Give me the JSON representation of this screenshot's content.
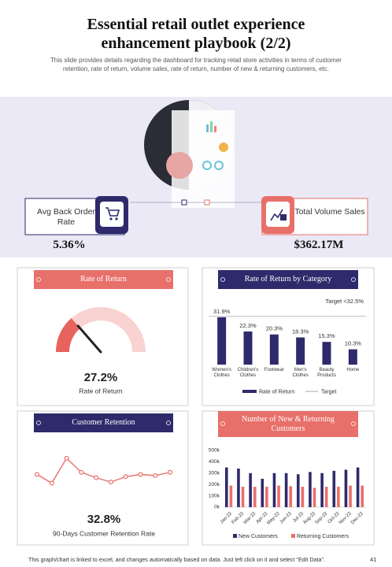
{
  "header": {
    "title": "Essential retail outlet experience enhancement playbook (2/2)",
    "subtitle": "This slide provides details regarding the dashboard for tracking retail store activities in terms of customer retention, rate of return, volume sales, rate of return, number of new & returning customers, etc."
  },
  "kpis": [
    {
      "label": "Avg Back Order Rate",
      "value": "5.36%"
    },
    {
      "label": "Total Volume Sales",
      "value": "$362.17M"
    }
  ],
  "chart_data": [
    {
      "type": "gauge",
      "title": "Rate of Return",
      "value": 27.2,
      "value_label": "27.2%",
      "label": "Rate of Return",
      "ylim": [
        0,
        100
      ],
      "color": "#e8635e",
      "track_color": "#f9d3d1"
    },
    {
      "type": "bar",
      "title": "Rate of Return by Category",
      "categories": [
        "Women's Clothes",
        "Children's Clothes",
        "Footwear",
        "Men's Clothes",
        "Beauty Products",
        "Home"
      ],
      "series": [
        {
          "name": "Rate of Return",
          "color": "#2e2a6b",
          "values": [
            31.9,
            22.3,
            20.3,
            18.3,
            15.3,
            10.3
          ],
          "value_labels": [
            "31.9%",
            "22.3%",
            "20.3%",
            "18.3%",
            "15.3%",
            "10.3%"
          ]
        }
      ],
      "target": {
        "name": "Target",
        "value": 32.5,
        "label": "Target <32.5%",
        "color": "#aaaaaa"
      },
      "ylim": [
        0,
        35
      ]
    },
    {
      "type": "line",
      "title": "Customer Retention",
      "values": [
        30,
        22,
        45,
        32,
        27,
        23,
        28,
        30,
        29,
        32
      ],
      "color": "#e8706a",
      "ylim": [
        10,
        50
      ],
      "summary_value": 32.8,
      "summary_label": "32.8%",
      "label": "90-Days Customer Retention Rate"
    },
    {
      "type": "grouped_bar",
      "title": "Number of New & Returning Customers",
      "categories": [
        "Jan-22",
        "Feb-22",
        "Mar-22",
        "Apr-22",
        "May-22",
        "Jun-22",
        "Jul-22",
        "Aug-22",
        "Sep-22",
        "Oct-22",
        "Nov-22",
        "Dec-22"
      ],
      "series": [
        {
          "name": "New Customers",
          "color": "#2e2a6b",
          "values": [
            350000,
            340000,
            300000,
            250000,
            300000,
            300000,
            290000,
            310000,
            300000,
            320000,
            330000,
            350000
          ]
        },
        {
          "name": "Returning Customers",
          "color": "#e8706a",
          "values": [
            190000,
            180000,
            180000,
            180000,
            190000,
            185000,
            180000,
            170000,
            180000,
            180000,
            190000,
            190000
          ]
        }
      ],
      "ylim": [
        0,
        500000
      ],
      "yticks": [
        {
          "value": 0,
          "label": "0k"
        },
        {
          "value": 100000,
          "label": "100k"
        },
        {
          "value": 200000,
          "label": "200k"
        },
        {
          "value": 300000,
          "label": "300k"
        },
        {
          "value": 400000,
          "label": "400k"
        },
        {
          "value": 500000,
          "label": "500k"
        }
      ],
      "grid": false
    }
  ],
  "footer": {
    "note": "This graph/chart is linked to excel, and changes automatically based on data. Just left click on it and select \"Edit Data\".",
    "page": "41"
  }
}
